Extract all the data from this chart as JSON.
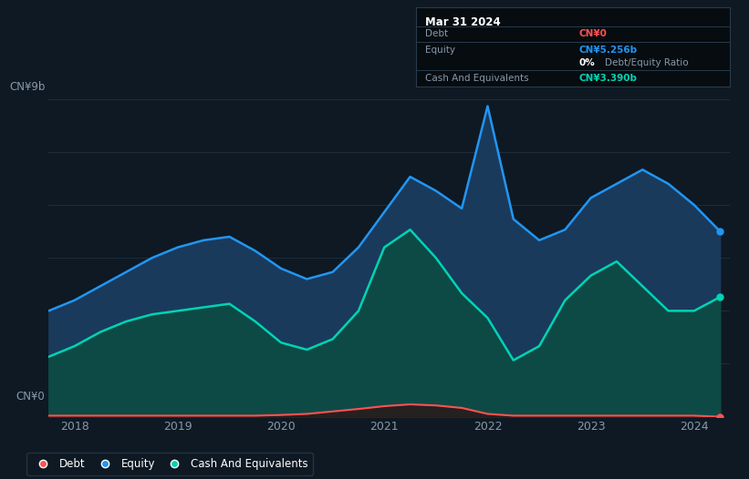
{
  "bg_color": "#0e1923",
  "plot_bg_color": "#0e1923",
  "ylabel_top": "CN¥9b",
  "ylabel_bottom": "CN¥0",
  "x_ticks": [
    2018,
    2019,
    2020,
    2021,
    2022,
    2023,
    2024
  ],
  "equity_color": "#2196f3",
  "equity_fill_color": "#1a3a5c",
  "cash_color": "#00d4b4",
  "cash_fill_color": "#0d4a45",
  "debt_color": "#ff5252",
  "debt_fill_color": "#2a1a1a",
  "grid_color": "#1e2d3d",
  "tooltip_bg": "#060c10",
  "tooltip_border": "#2a3a4a",
  "tooltip_title": "Mar 31 2024",
  "tooltip_debt_val": "CN¥0",
  "tooltip_equity_val": "CN¥5.256b",
  "tooltip_ratio": "0% Debt/Equity Ratio",
  "tooltip_cash_val": "CN¥3.390b",
  "equity_label": "Equity",
  "cash_label": "Cash And Equivalents",
  "debt_label": "Debt",
  "x_data": [
    2017.75,
    2018.0,
    2018.25,
    2018.5,
    2018.75,
    2019.0,
    2019.25,
    2019.5,
    2019.75,
    2020.0,
    2020.25,
    2020.5,
    2020.75,
    2021.0,
    2021.25,
    2021.5,
    2021.75,
    2022.0,
    2022.25,
    2022.5,
    2022.75,
    2023.0,
    2023.25,
    2023.5,
    2023.75,
    2024.0,
    2024.25
  ],
  "equity_data": [
    3.0,
    3.3,
    3.7,
    4.1,
    4.5,
    4.8,
    5.0,
    5.1,
    4.7,
    4.2,
    3.9,
    4.1,
    4.8,
    5.8,
    6.8,
    6.4,
    5.9,
    8.8,
    5.6,
    5.0,
    5.3,
    6.2,
    6.6,
    7.0,
    6.6,
    6.0,
    5.256
  ],
  "cash_data": [
    1.7,
    2.0,
    2.4,
    2.7,
    2.9,
    3.0,
    3.1,
    3.2,
    2.7,
    2.1,
    1.9,
    2.2,
    3.0,
    4.8,
    5.3,
    4.5,
    3.5,
    2.8,
    1.6,
    2.0,
    3.3,
    4.0,
    4.4,
    3.7,
    3.0,
    3.0,
    3.39
  ],
  "debt_data": [
    0.03,
    0.03,
    0.03,
    0.03,
    0.03,
    0.03,
    0.03,
    0.03,
    0.03,
    0.05,
    0.08,
    0.15,
    0.22,
    0.3,
    0.35,
    0.32,
    0.25,
    0.08,
    0.03,
    0.03,
    0.03,
    0.03,
    0.03,
    0.03,
    0.03,
    0.03,
    0.0
  ],
  "ylim": [
    0,
    9.5
  ],
  "xlim": [
    2017.75,
    2024.35
  ],
  "grid_y_vals": [
    0,
    1.5,
    3.0,
    4.5,
    6.0,
    7.5,
    9.0
  ]
}
